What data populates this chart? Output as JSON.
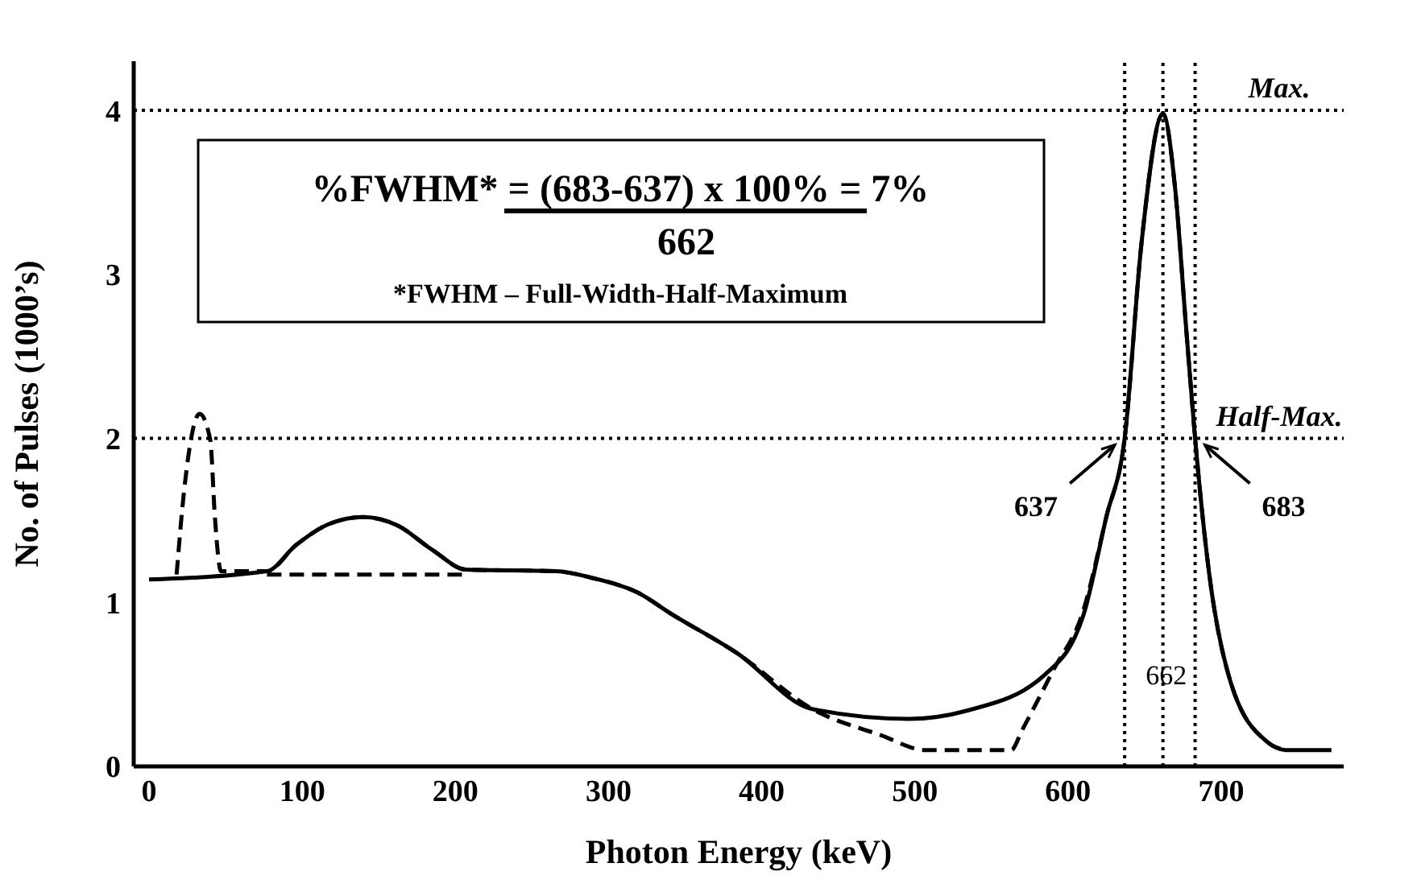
{
  "chart_data": {
    "type": "line",
    "xlabel": "Photon Energy (keV)",
    "ylabel": "No. of Pulses (1000’s)",
    "xlim": [
      -10,
      780
    ],
    "ylim": [
      0,
      4.3
    ],
    "xticks": [
      0,
      100,
      200,
      300,
      400,
      500,
      600,
      700
    ],
    "yticks": [
      0,
      1,
      2,
      3,
      4
    ],
    "grid": false,
    "marker": "none",
    "series": [
      {
        "color": "#000000",
        "line_style": "solid",
        "x": [
          0,
          77,
          96,
          118,
          140,
          162,
          185,
          207,
          266,
          289,
          319,
          341,
          384,
          433,
          496,
          534,
          585,
          610,
          625,
          637,
          648,
          662,
          670,
          677,
          683,
          692,
          706,
          730,
          742,
          772
        ],
        "values": [
          1.14,
          1.19,
          1.35,
          1.48,
          1.52,
          1.47,
          1.32,
          1.2,
          1.19,
          1.15,
          1.06,
          0.93,
          0.69,
          0.35,
          0.29,
          0.34,
          0.56,
          0.92,
          1.52,
          2.0,
          3.19,
          3.98,
          3.52,
          2.69,
          2.0,
          1.19,
          0.52,
          0.15,
          0.1,
          0.1
        ]
      },
      {
        "color": "#000000",
        "line_style": "dashed",
        "x": [
          18,
          23,
          33,
          40,
          43,
          47,
          77,
          96,
          118,
          140,
          162,
          185,
          207,
          266,
          289,
          319,
          341,
          384,
          433,
          478,
          507,
          563,
          570,
          590,
          610,
          625,
          637,
          648,
          662,
          670,
          677,
          683,
          692,
          706,
          730,
          742
        ],
        "values": [
          1.17,
          1.69,
          2.15,
          1.99,
          1.52,
          1.19,
          1.19,
          1.35,
          1.48,
          1.52,
          1.47,
          1.32,
          1.2,
          1.19,
          1.15,
          1.06,
          0.93,
          0.69,
          0.35,
          0.19,
          0.1,
          0.1,
          0.22,
          0.58,
          0.95,
          1.52,
          2.0,
          3.19,
          3.98,
          3.52,
          2.69,
          2.0,
          1.19,
          0.52,
          0.15,
          0.1
        ]
      },
      {
        "color": "#000000",
        "line_style": "dashed",
        "x": [
          77,
          207
        ],
        "values": [
          1.17,
          1.17
        ]
      }
    ],
    "ref_lines": [
      {
        "axis": "y",
        "value": 4,
        "label": "Max.",
        "line_style": "dotted",
        "color": "#000000"
      },
      {
        "axis": "y",
        "value": 2,
        "label": "Half-Max.",
        "line_style": "dotted",
        "color": "#000000"
      },
      {
        "axis": "x",
        "value": 637,
        "line_style": "dotted",
        "color": "#000000"
      },
      {
        "axis": "x",
        "value": 662,
        "label": "662",
        "line_style": "dotted",
        "color": "#000000"
      },
      {
        "axis": "x",
        "value": 683,
        "line_style": "dotted",
        "color": "#000000"
      }
    ],
    "annotations": [
      "%FWHM* = ",
      "(683-637) x 100%",
      " = 7%",
      "662",
      "*FWHM – Full-Width-Half-Maximum",
      {
        "text": "637",
        "x": 637,
        "y": 2
      },
      {
        "text": "683",
        "x": 683,
        "y": 2
      }
    ]
  }
}
